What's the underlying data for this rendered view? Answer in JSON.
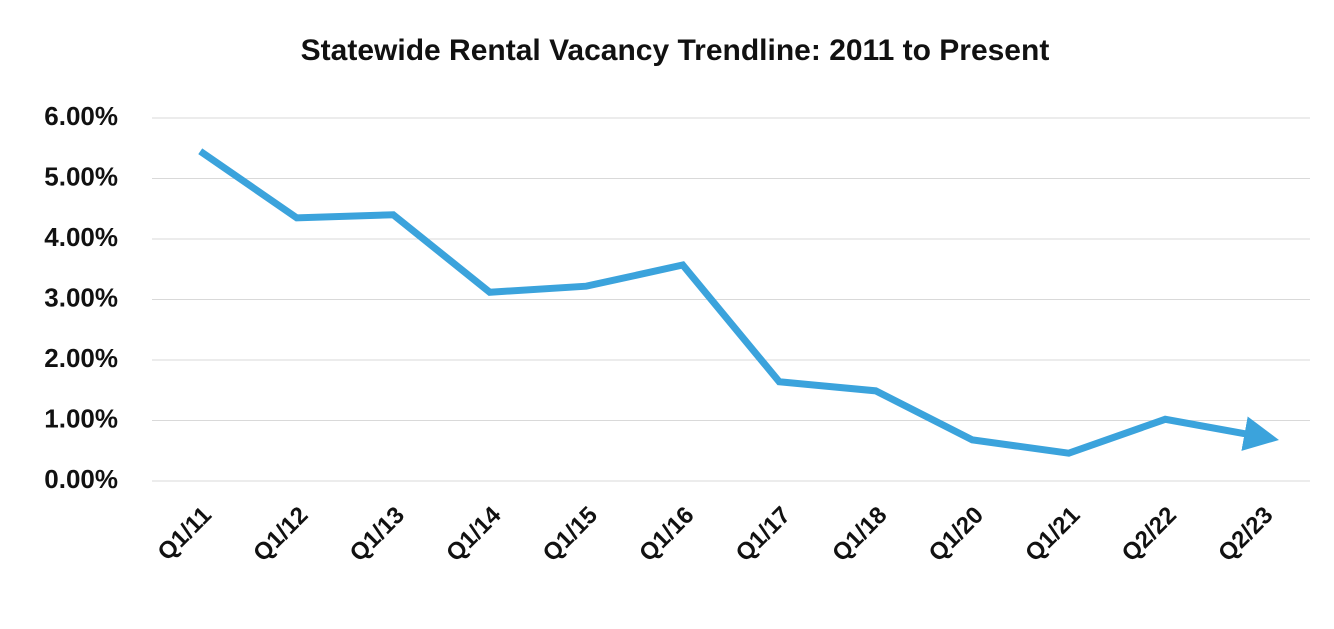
{
  "chart_data": {
    "type": "line",
    "title": "Statewide Rental Vacancy Trendline: 2011 to Present",
    "categories": [
      "Q1/11",
      "Q1/12",
      "Q1/13",
      "Q1/14",
      "Q1/15",
      "Q1/16",
      "Q1/17",
      "Q1/18",
      "Q1/20",
      "Q1/21",
      "Q2/22",
      "Q2/23"
    ],
    "values": [
      5.45,
      4.35,
      4.4,
      3.12,
      3.22,
      3.57,
      1.64,
      1.49,
      0.68,
      0.46,
      1.02,
      0.73
    ],
    "color": "#3ba3dc",
    "ylim": [
      0,
      6
    ],
    "yticks": [
      {
        "value": 0,
        "label": "0.00%"
      },
      {
        "value": 1,
        "label": "1.00%"
      },
      {
        "value": 2,
        "label": "2.00%"
      },
      {
        "value": 3,
        "label": "3.00%"
      },
      {
        "value": 4,
        "label": "4.00%"
      },
      {
        "value": 5,
        "label": "5.00%"
      },
      {
        "value": 6,
        "label": "6.00%"
      }
    ],
    "grid": true
  }
}
